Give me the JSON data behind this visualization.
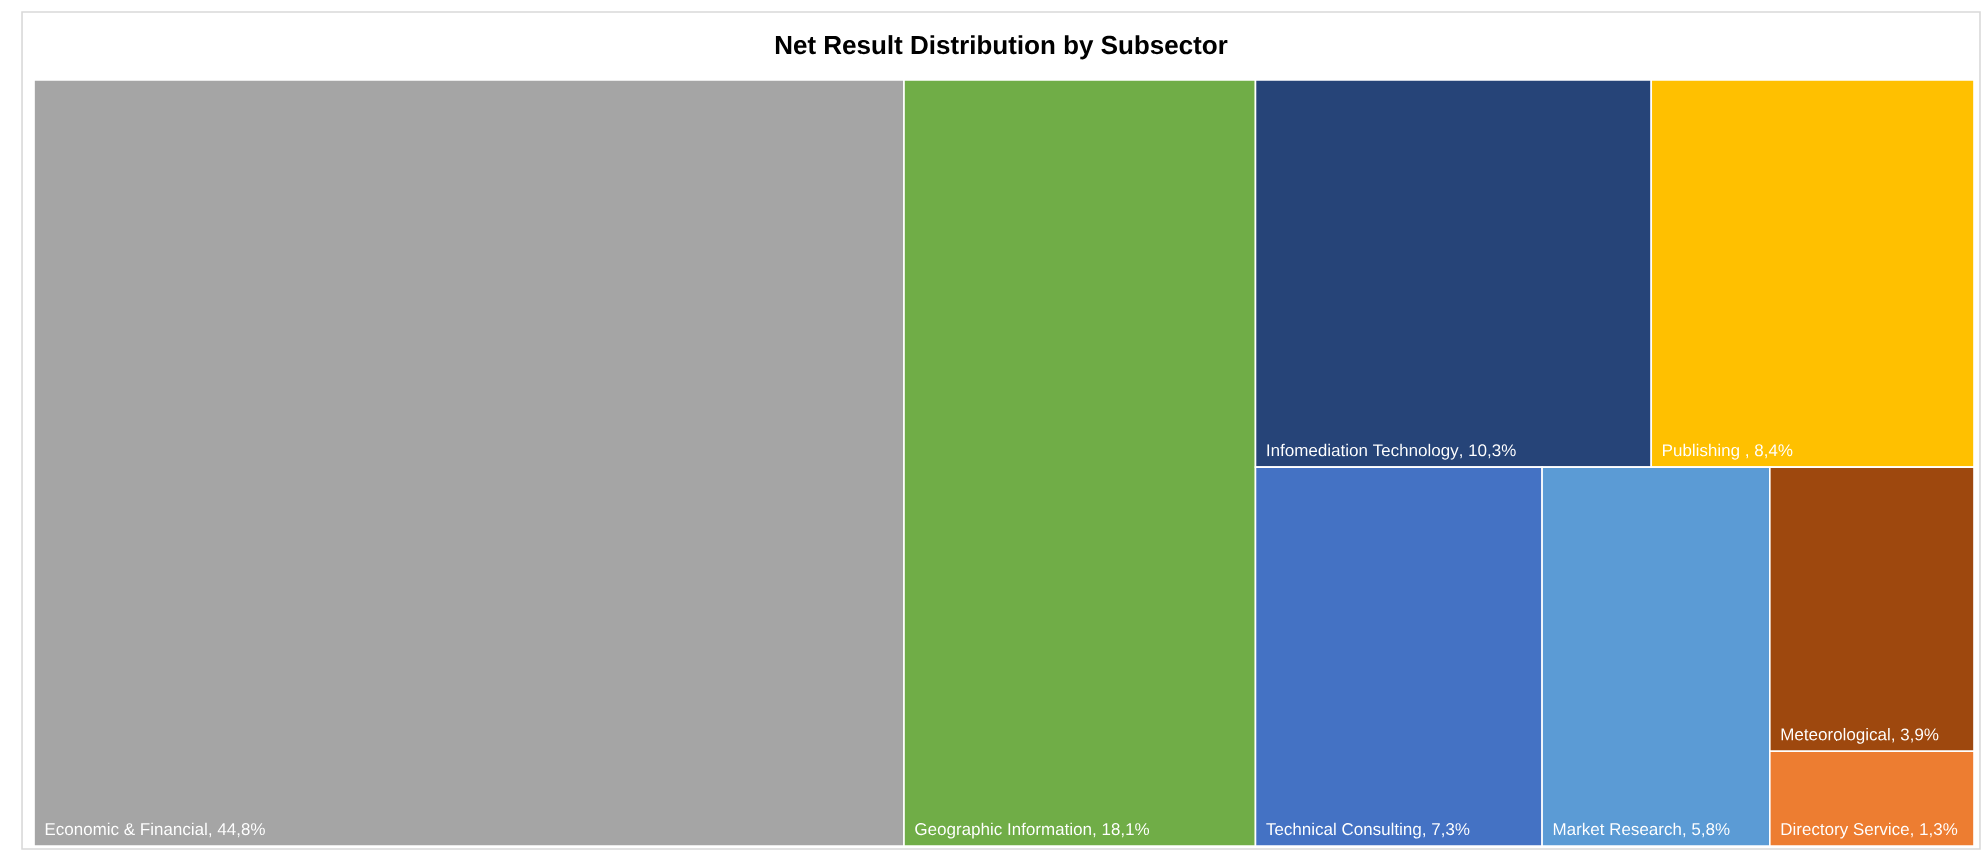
{
  "chart_data": {
    "type": "other",
    "title": "Net Result Distribution by Subsector",
    "categories": [
      "Economic & Financial",
      "Geographic Information",
      "Infomediation Technology",
      "Publishing ",
      "Technical Consulting",
      "Market Research",
      "Meteorological",
      "Directory Service"
    ],
    "values": [
      44.8,
      18.1,
      10.3,
      8.4,
      7.3,
      5.8,
      3.9,
      1.3
    ],
    "value_labels": [
      ", 44,8%",
      ", 18,1%",
      ", 10,3%",
      ", 8,4%",
      ", 7,3%",
      ", 5,8%",
      ", 3,9%",
      ", 1,3%"
    ],
    "colors": [
      "#a5a5a5",
      "#70ad47",
      "#264478",
      "#ffc000",
      "#4472c4",
      "#5b9bd5",
      "#9e480e",
      "#ed7d31"
    ]
  }
}
